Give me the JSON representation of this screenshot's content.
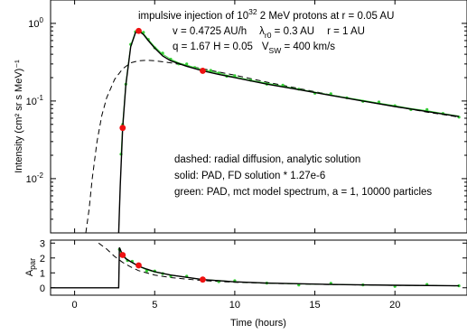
{
  "chart_data": [
    {
      "type": "line",
      "panel": "top",
      "ylabel": "Intensity (cm² sr s MeV)⁻¹",
      "yscale": "log",
      "ylim": [
        0.002,
        2
      ],
      "xlim": [
        -1.5,
        24.5
      ],
      "y_ticks": [
        {
          "value": 1,
          "base": "10",
          "exp": "0"
        },
        {
          "value": 0.1,
          "base": "10",
          "exp": "-1"
        },
        {
          "value": 0.01,
          "base": "10",
          "exp": "-2"
        }
      ],
      "annotations": {
        "line1_pre": "impulsive injection of 10",
        "line1_sup": "32",
        "line1_post": "  2 MeV protons at r = 0.05 AU",
        "line2_v": "v  = 0.4725 AU/h",
        "line2_lam": "λ",
        "line2_lamsub": "r0",
        "line2_lamval": " = 0.3 AU",
        "line2_r": "r  = 1 AU",
        "line3_qH": "q = 1.67    H = 0.05",
        "line3_V": "V",
        "line3_Vsub": "SW",
        "line3_Vval": " = 400 km/s",
        "legend_dashed": "dashed: radial diffusion, analytic solution",
        "legend_solid": "solid: PAD, FD solution * 1.27e-6",
        "legend_green": "green: PAD, mct model spectrum, a = 1, 10000 particles"
      },
      "series": [
        {
          "style": "dashed",
          "x": [
            0.7,
            0.9,
            1.1,
            1.4,
            1.7,
            2.0,
            2.5,
            3.0,
            3.5,
            4.0,
            4.5,
            5.0,
            6,
            7,
            8,
            10,
            12,
            14,
            16,
            18,
            20,
            22,
            24
          ],
          "y": [
            0.002,
            0.004,
            0.01,
            0.03,
            0.065,
            0.11,
            0.19,
            0.26,
            0.31,
            0.33,
            0.335,
            0.33,
            0.31,
            0.285,
            0.26,
            0.215,
            0.175,
            0.145,
            0.12,
            0.1,
            0.085,
            0.072,
            0.062
          ]
        },
        {
          "style": "solid",
          "x": [
            2.75,
            2.85,
            3.0,
            3.2,
            3.5,
            3.8,
            4.0,
            4.3,
            4.6,
            5.0,
            5.5,
            6,
            7,
            8,
            9,
            10,
            12,
            14,
            16,
            18,
            20,
            22,
            24
          ],
          "y": [
            0.002,
            0.008,
            0.045,
            0.16,
            0.5,
            0.76,
            0.8,
            0.72,
            0.6,
            0.48,
            0.38,
            0.33,
            0.28,
            0.245,
            0.22,
            0.2,
            0.165,
            0.14,
            0.118,
            0.1,
            0.085,
            0.073,
            0.063
          ]
        },
        {
          "style": "green",
          "x": [
            2.9,
            3.0,
            3.2,
            3.5,
            3.8,
            4.0,
            4.3,
            4.6,
            5.0,
            5.5,
            6,
            6.5,
            7,
            7.5,
            8,
            8.5,
            9,
            9.5,
            10,
            11,
            12,
            13,
            14,
            15,
            16,
            17,
            18,
            19,
            20,
            21,
            22,
            23,
            24
          ],
          "y": [
            0.02,
            0.05,
            0.17,
            0.52,
            0.78,
            0.83,
            0.74,
            0.62,
            0.5,
            0.4,
            0.345,
            0.31,
            0.29,
            0.27,
            0.255,
            0.24,
            0.23,
            0.215,
            0.205,
            0.185,
            0.17,
            0.155,
            0.142,
            0.13,
            0.12,
            0.11,
            0.102,
            0.094,
            0.087,
            0.08,
            0.075,
            0.069,
            0.064
          ]
        }
      ],
      "markers": [
        {
          "x": 3.0,
          "y": 0.045
        },
        {
          "x": 4.0,
          "y": 0.8
        },
        {
          "x": 8.0,
          "y": 0.245
        }
      ]
    },
    {
      "type": "line",
      "panel": "bottom",
      "ylabel_base": "A",
      "ylabel_sub": "par",
      "xlabel": "Time (hours)",
      "ylim": [
        -0.5,
        3.2
      ],
      "xlim": [
        -1.5,
        24.5
      ],
      "x_ticks": [
        0,
        5,
        10,
        15,
        20
      ],
      "y_ticks": [
        0,
        1,
        2,
        3
      ],
      "series": [
        {
          "style": "dashed",
          "x": [
            1.5,
            2.0,
            2.5,
            3.0,
            3.5,
            4.0,
            5,
            6,
            8,
            10,
            12,
            16,
            20,
            24
          ],
          "y": [
            3.0,
            2.6,
            2.1,
            1.7,
            1.4,
            1.15,
            0.85,
            0.68,
            0.48,
            0.37,
            0.3,
            0.21,
            0.16,
            0.13
          ]
        },
        {
          "style": "solid",
          "x": [
            -1.5,
            2.75,
            2.8,
            2.9,
            3.0,
            3.2,
            3.5,
            4.0,
            4.5,
            5,
            6,
            8,
            10,
            12,
            16,
            20,
            24
          ],
          "y": [
            0,
            0,
            2.7,
            2.45,
            2.2,
            1.95,
            1.75,
            1.45,
            1.25,
            1.08,
            0.85,
            0.55,
            0.4,
            0.31,
            0.22,
            0.17,
            0.13
          ]
        },
        {
          "style": "green",
          "x": [
            2.8,
            3.0,
            3.3,
            3.6,
            4.0,
            4.5,
            5,
            5.5,
            6,
            7,
            8,
            9,
            10,
            12,
            14,
            16,
            18,
            20,
            22,
            24
          ],
          "y": [
            2.5,
            2.2,
            1.9,
            1.7,
            1.45,
            1.2,
            1.05,
            0.95,
            0.85,
            0.7,
            0.55,
            0.48,
            0.4,
            0.31,
            0.26,
            0.22,
            0.19,
            0.17,
            0.15,
            0.13
          ]
        }
      ],
      "markers": [
        {
          "x": 3.0,
          "y": 2.2
        },
        {
          "x": 4.0,
          "y": 1.5
        },
        {
          "x": 8.0,
          "y": 0.55
        }
      ]
    }
  ]
}
